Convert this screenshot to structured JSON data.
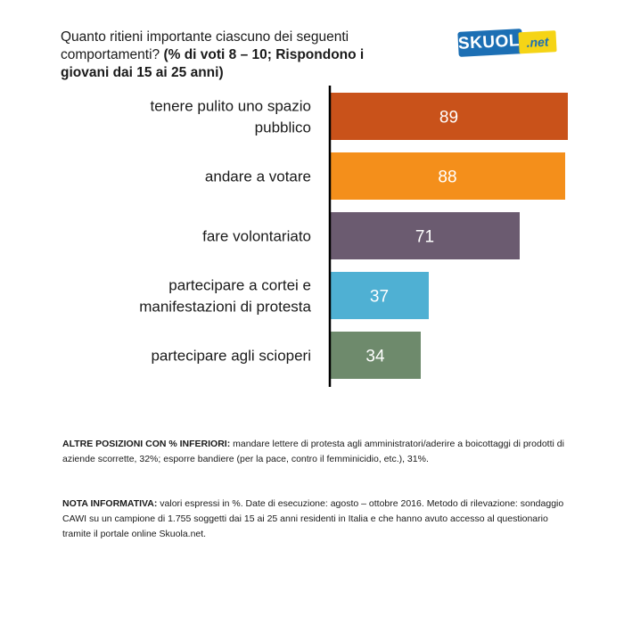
{
  "header": {
    "title_plain": "Quanto ritieni importante ciascuno dei seguenti comportamenti?",
    "title_bold": "(% di voti 8 – 10; Rispondono i giovani dai 15 ai 25 anni)"
  },
  "logo": {
    "part1": "SKUOLA",
    "part2": ".net",
    "colors": {
      "blue": "#1c6fb4",
      "yellow": "#f5d416"
    }
  },
  "chart_data": {
    "type": "bar",
    "orientation": "horizontal",
    "categories": [
      "tenere pulito uno spazio pubblico",
      "andare a votare",
      "fare volontariato",
      "partecipare a cortei e manifestazioni di protesta",
      "partecipare agli scioperi"
    ],
    "category_lines": [
      [
        "tenere pulito uno spazio",
        "pubblico"
      ],
      [
        "andare a votare"
      ],
      [
        "fare volontariato"
      ],
      [
        "partecipare a cortei e",
        "manifestazioni di protesta"
      ],
      [
        "partecipare agli scioperi"
      ]
    ],
    "values": [
      89,
      88,
      71,
      37,
      34
    ],
    "colors": [
      "#c9521a",
      "#f48f1b",
      "#6b5b70",
      "#4fb0d3",
      "#6e8a6c"
    ],
    "data_label_color": "#ffffff",
    "xlim": [
      0,
      100
    ],
    "grid": false,
    "legend": "none"
  },
  "notes": {
    "altre_label": "ALTRE POSIZIONI CON % INFERIORI:",
    "altre_text": "mandare lettere di protesta agli amministratori/aderire a boicottaggi di prodotti di aziende scorrette, 32%; esporre bandiere (per la pace, contro il femminicidio, etc.), 31%.",
    "nota_label": "NOTA INFORMATIVA:",
    "nota_text": "valori espressi in %. Date di esecuzione: agosto – ottobre 2016. Metodo di rilevazione: sondaggio CAWI su un campione di 1.755 soggetti dai 15 ai 25 anni residenti in Italia e che hanno avuto accesso al questionario tramite il portale online Skuola.net."
  }
}
